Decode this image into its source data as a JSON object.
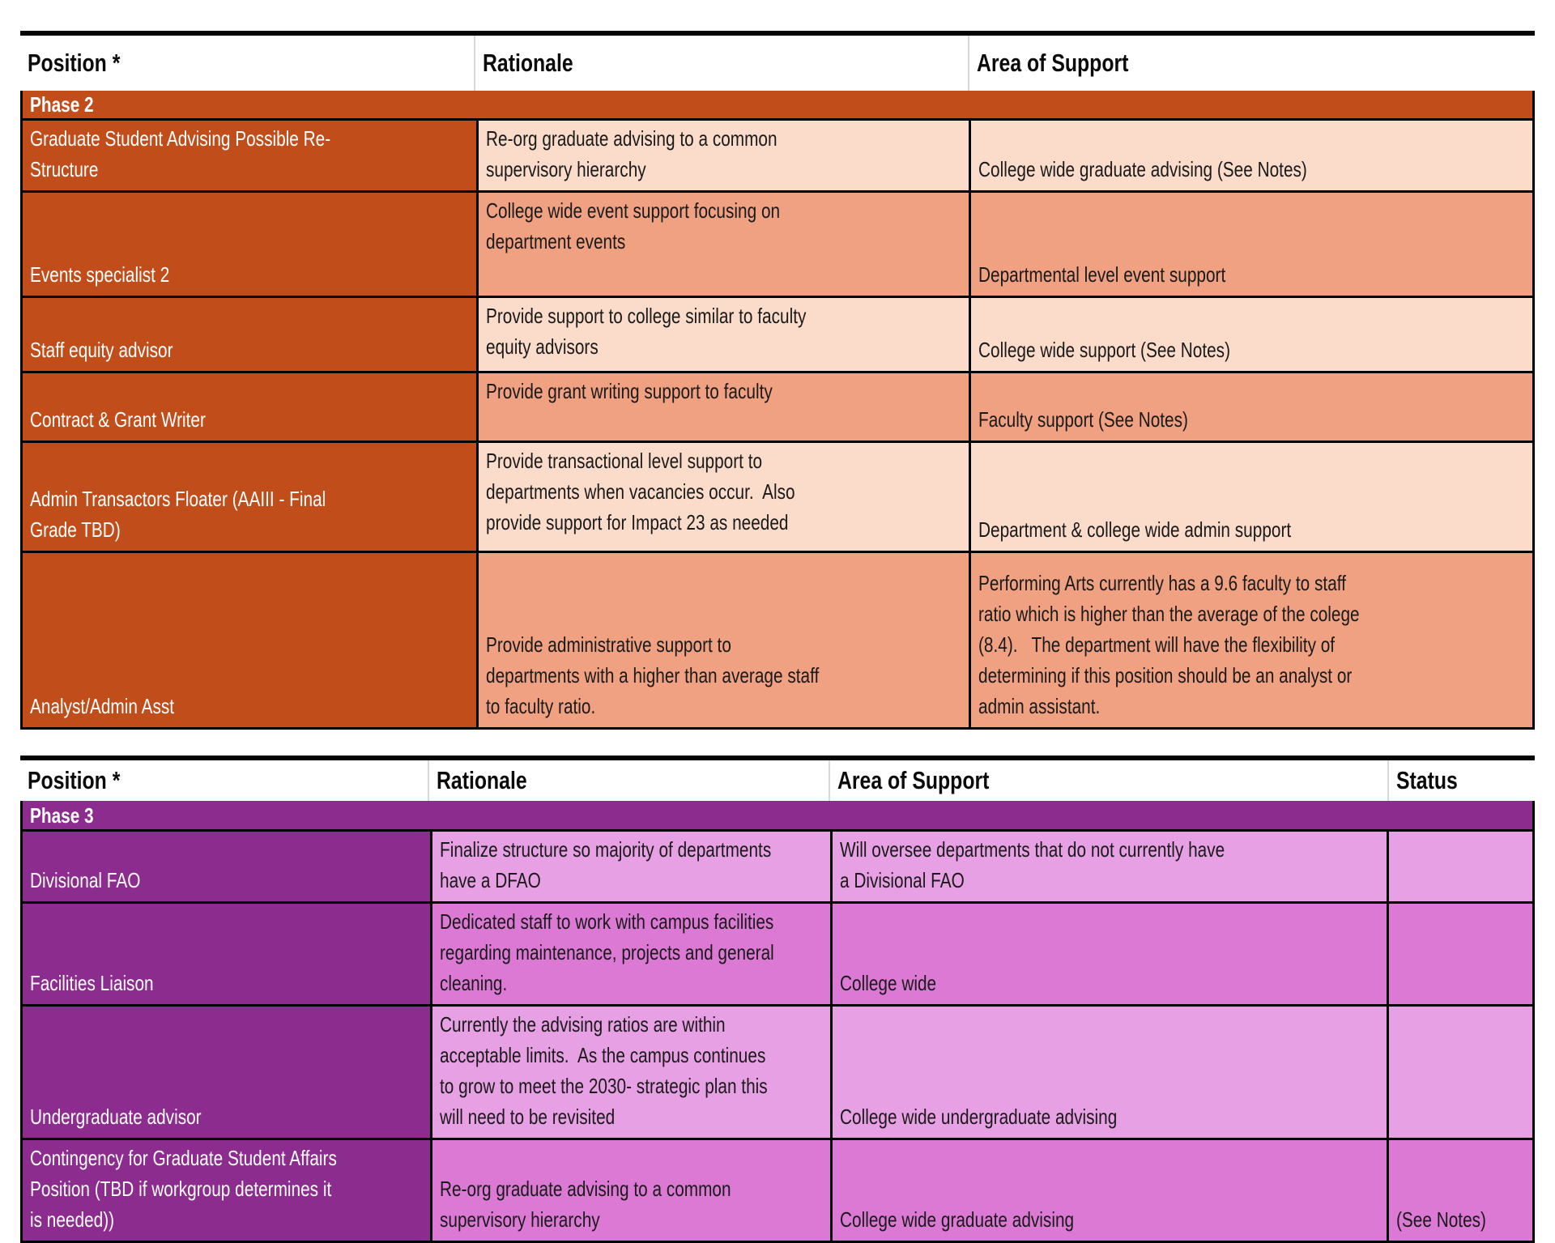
{
  "colors": {
    "t1_dark": "#C14E1A",
    "t1_light": "#FBDCCA",
    "t1_mid": "#EFA181",
    "t2_dark": "#8D2C8F",
    "t2_light": "#E7A0E3",
    "t2_mid": "#DB79D4",
    "header_bg": "#FFFFFF",
    "text_light": "#FFFFFF",
    "grid_border": "#000000"
  },
  "table1": {
    "phase_label": "Phase 2",
    "headers": {
      "position": "Position *",
      "rationale": "Rationale",
      "area": "Area of Support"
    },
    "rows": [
      {
        "position": "Graduate Student Advising Possible Re-\nStructure",
        "rationale": "Re-org graduate advising to a common\nsupervisory hierarchy",
        "area": "College wide graduate advising (See Notes)"
      },
      {
        "position": "Events specialist 2",
        "rationale": "College wide event support focusing on\ndepartment events",
        "area": "Departmental level event support"
      },
      {
        "position": "Staff equity advisor",
        "rationale": "Provide support to college similar to faculty\nequity advisors",
        "area": "College wide support (See Notes)"
      },
      {
        "position": "Contract & Grant Writer",
        "rationale": "Provide grant writing support to faculty",
        "area": "Faculty support (See Notes)"
      },
      {
        "position": "Admin Transactors Floater (AAIII - Final\nGrade TBD)",
        "rationale": "Provide transactional level support to\ndepartments when vacancies occur.  Also\nprovide support for Impact 23 as needed",
        "area": "Department & college wide admin support"
      },
      {
        "position": "Analyst/Admin Asst",
        "rationale": "Provide administrative support to\ndepartments with a higher than average staff\nto faculty ratio.",
        "area": "Performing Arts currently has a 9.6 faculty to staff\nratio which is higher than the average of the colege\n(8.4).   The department will have the flexibility of\ndetermining if this position should be an analyst or\nadmin assistant."
      }
    ]
  },
  "table2": {
    "phase_label": "Phase 3",
    "headers": {
      "position": "Position *",
      "rationale": "Rationale",
      "area": "Area of Support",
      "status": "Status"
    },
    "rows": [
      {
        "position": "Divisional FAO",
        "rationale": "Finalize structure so majority of departments\nhave a DFAO",
        "area": "Will oversee departments that do not currently have\na Divisional FAO",
        "status": ""
      },
      {
        "position": "Facilities Liaison",
        "rationale": "Dedicated staff to work with campus facilities\nregarding maintenance, projects and general\ncleaning.",
        "area": "College wide",
        "status": ""
      },
      {
        "position": "Undergraduate advisor",
        "rationale": "Currently the advising ratios are within\nacceptable limits.  As the campus continues\nto grow to meet the 2030- strategic plan this\nwill need to be revisited",
        "area": "College wide undergraduate advising",
        "status": ""
      },
      {
        "position": "Contingency for Graduate Student Affairs\nPosition (TBD if workgroup determines it\nis needed))",
        "rationale": "Re-org graduate advising to a common\nsupervisory hierarchy",
        "area": "College wide graduate advising",
        "status": "(See Notes)"
      }
    ]
  }
}
